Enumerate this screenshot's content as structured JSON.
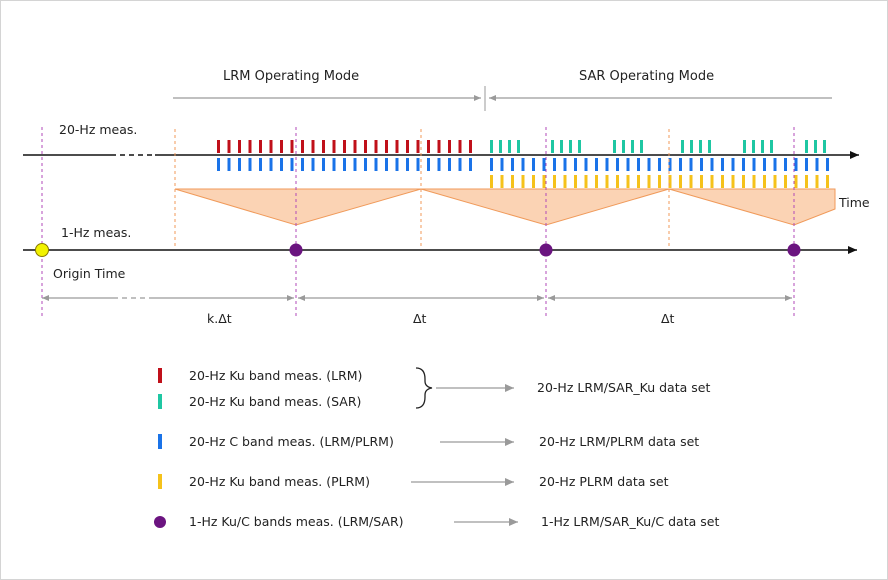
{
  "header": {
    "lrm_mode_label": "LRM Operating Mode",
    "sar_mode_label": "SAR Operating Mode"
  },
  "axes": {
    "meas_20hz_label": "20-Hz meas.",
    "meas_1hz_label": "1-Hz meas.",
    "time_label": "Time",
    "origin_label": "Origin Time"
  },
  "intervals": {
    "first_label": "k.Δt",
    "second_label": "Δt",
    "third_label": "Δt"
  },
  "legend": {
    "items": [
      {
        "label": "20-Hz Ku band meas. (LRM)",
        "color": "#c0101a"
      },
      {
        "label": "20-Hz Ku band meas. (SAR)",
        "color": "#1fc7a3"
      },
      {
        "label": "20-Hz C band meas. (LRM/PLRM)",
        "color": "#1a73e8"
      },
      {
        "label": "20-Hz Ku band meas. (PLRM)",
        "color": "#f5c21b"
      },
      {
        "label": "1-Hz Ku/C bands meas. (LRM/SAR)",
        "color": "#6b1480"
      }
    ],
    "outputs": {
      "ku_dataset": "20-Hz LRM/SAR_Ku data set",
      "c_dataset": "20-Hz LRM/PLRM data set",
      "plrm_dataset": "20-Hz PLRM data set",
      "onehz_dataset": "1-Hz LRM/SAR_Ku/C data set"
    }
  },
  "colors": {
    "ku_lrm": "#c0101a",
    "ku_sar": "#1fc7a3",
    "c_band": "#1a73e8",
    "ku_plrm": "#f5c21b",
    "one_hz_dot": "#6b1480",
    "origin_dot": "#f2f200",
    "triangle_fill": "#fbd3b4",
    "triangle_stroke": "#f09a5a",
    "vline": "#b04ab8"
  }
}
